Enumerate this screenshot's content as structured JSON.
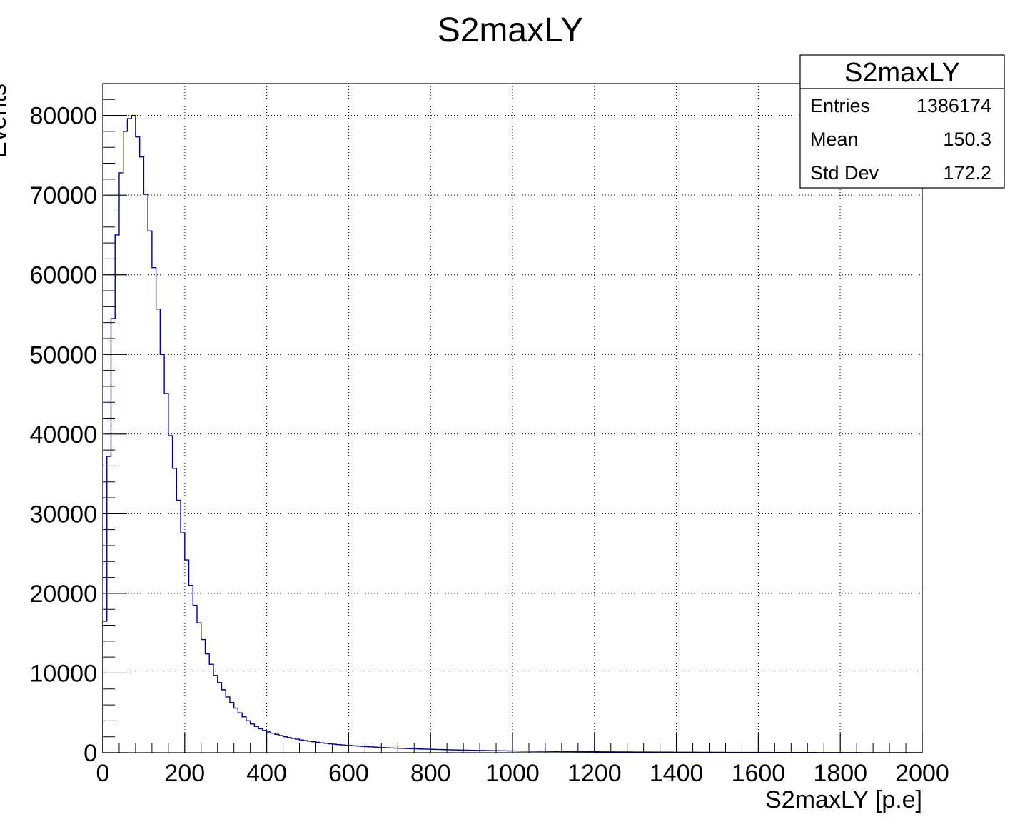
{
  "chart_data": {
    "type": "histogram",
    "title": "S2maxLY",
    "xlabel": "S2maxLY [p.e]",
    "ylabel": "Events",
    "xlim": [
      0,
      2000
    ],
    "ylim": [
      0,
      84000
    ],
    "grid": true,
    "log_scale": false,
    "line_color": "#000080",
    "x_ticks": [
      0,
      200,
      400,
      600,
      800,
      1000,
      1200,
      1400,
      1600,
      1800,
      2000
    ],
    "y_ticks": [
      0,
      10000,
      20000,
      30000,
      40000,
      50000,
      60000,
      70000,
      80000
    ],
    "bin_width": 10,
    "bin_values": [
      16500,
      37200,
      54500,
      65000,
      72800,
      78000,
      79600,
      80000,
      77300,
      74800,
      70100,
      65500,
      60900,
      55700,
      50000,
      45100,
      39800,
      35700,
      31700,
      27600,
      24200,
      21000,
      18500,
      16300,
      14200,
      12400,
      11100,
      9700,
      8800,
      7900,
      7000,
      6300,
      5600,
      5000,
      4500,
      4000,
      3600,
      3300,
      3000,
      2800,
      2600,
      2450,
      2300,
      2150,
      2000,
      1900,
      1800,
      1700,
      1600,
      1520,
      1440,
      1370,
      1300,
      1240,
      1180,
      1120,
      1070,
      1020,
      980,
      940,
      900,
      860,
      820,
      790,
      760,
      730,
      700,
      670,
      640,
      620,
      600,
      580,
      560,
      540,
      520,
      500,
      485,
      470,
      455,
      440,
      425,
      410,
      395,
      380,
      368,
      356,
      344,
      332,
      320,
      310,
      300,
      290,
      280,
      270,
      262,
      254,
      246,
      238,
      230,
      222,
      215,
      208,
      201,
      195,
      189,
      183,
      177,
      171,
      166,
      161,
      156,
      151,
      146,
      141,
      137,
      133,
      129,
      125,
      121,
      117,
      113,
      110,
      107,
      104,
      101,
      98,
      95,
      92,
      89,
      86,
      84,
      82,
      80,
      78,
      76,
      74,
      72,
      70,
      68,
      66,
      64,
      62,
      60,
      58,
      56,
      54,
      52,
      50,
      48,
      46,
      45,
      44,
      43,
      42,
      41,
      40,
      39,
      38,
      37,
      36,
      35,
      34,
      33,
      32,
      31,
      30,
      29,
      28,
      27,
      26,
      25,
      24,
      23,
      22,
      21,
      20,
      19,
      18,
      17,
      16,
      15,
      14,
      13,
      12,
      11,
      10,
      9,
      8,
      7,
      6,
      5,
      4,
      3,
      2,
      1,
      1,
      0,
      0,
      0,
      0
    ]
  },
  "stats_box": {
    "title": "S2maxLY",
    "rows": [
      {
        "label": "Entries",
        "value": "1386174"
      },
      {
        "label": "Mean",
        "value": "150.3"
      },
      {
        "label": "Std Dev",
        "value": "172.2"
      }
    ]
  }
}
